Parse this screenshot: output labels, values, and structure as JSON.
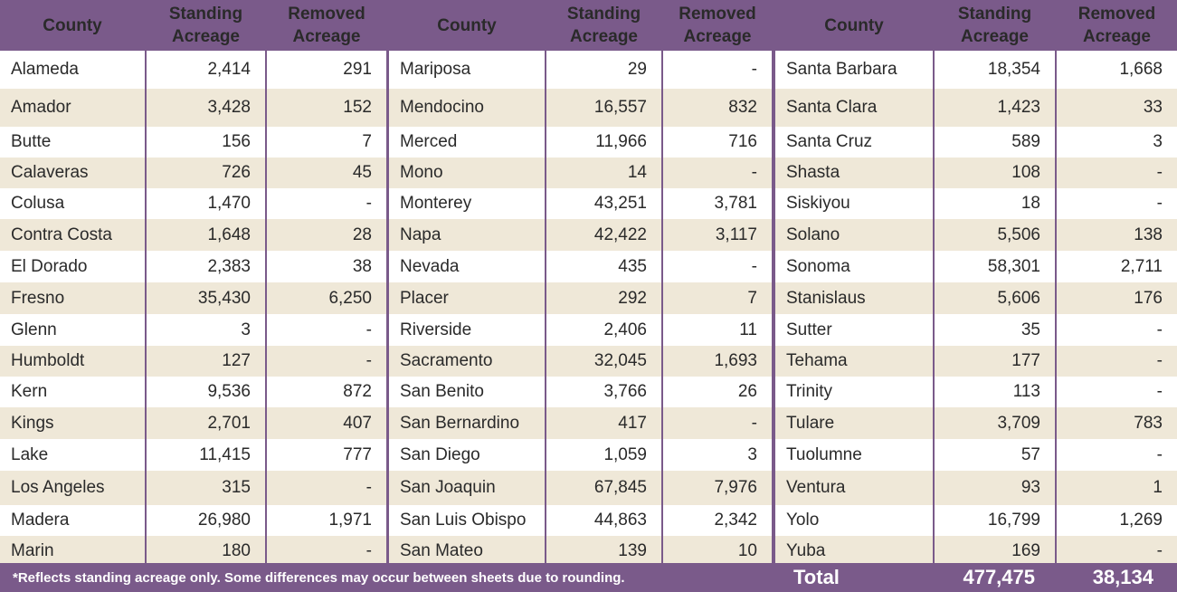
{
  "headers": {
    "county": "County",
    "standing": "Standing Acreage",
    "removed": "Removed Acreage"
  },
  "columns": [
    [
      {
        "county": "Alameda",
        "standing": "2,414",
        "removed": "291"
      },
      {
        "county": "Amador",
        "standing": "3,428",
        "removed": "152"
      },
      {
        "county": "Butte",
        "standing": "156",
        "removed": "7"
      },
      {
        "county": "Calaveras",
        "standing": "726",
        "removed": "45"
      },
      {
        "county": "Colusa",
        "standing": "1,470",
        "removed": "-"
      },
      {
        "county": "Contra Costa",
        "standing": "1,648",
        "removed": "28"
      },
      {
        "county": "El Dorado",
        "standing": "2,383",
        "removed": "38"
      },
      {
        "county": "Fresno",
        "standing": "35,430",
        "removed": "6,250"
      },
      {
        "county": "Glenn",
        "standing": "3",
        "removed": "-"
      },
      {
        "county": "Humboldt",
        "standing": "127",
        "removed": "-"
      },
      {
        "county": "Kern",
        "standing": "9,536",
        "removed": "872"
      },
      {
        "county": "Kings",
        "standing": "2,701",
        "removed": "407"
      },
      {
        "county": "Lake",
        "standing": "11,415",
        "removed": "777"
      },
      {
        "county": "Los Angeles",
        "standing": "315",
        "removed": "-"
      },
      {
        "county": "Madera",
        "standing": "26,980",
        "removed": "1,971"
      },
      {
        "county": "Marin",
        "standing": "180",
        "removed": "-"
      }
    ],
    [
      {
        "county": "Mariposa",
        "standing": "29",
        "removed": "-"
      },
      {
        "county": "Mendocino",
        "standing": "16,557",
        "removed": "832"
      },
      {
        "county": "Merced",
        "standing": "11,966",
        "removed": "716"
      },
      {
        "county": "Mono",
        "standing": "14",
        "removed": "-"
      },
      {
        "county": "Monterey",
        "standing": "43,251",
        "removed": "3,781"
      },
      {
        "county": "Napa",
        "standing": "42,422",
        "removed": "3,117"
      },
      {
        "county": "Nevada",
        "standing": "435",
        "removed": "-"
      },
      {
        "county": "Placer",
        "standing": "292",
        "removed": "7"
      },
      {
        "county": "Riverside",
        "standing": "2,406",
        "removed": "11"
      },
      {
        "county": "Sacramento",
        "standing": "32,045",
        "removed": "1,693"
      },
      {
        "county": "San Benito",
        "standing": "3,766",
        "removed": "26"
      },
      {
        "county": "San Bernardino",
        "standing": "417",
        "removed": "-"
      },
      {
        "county": "San Diego",
        "standing": "1,059",
        "removed": "3"
      },
      {
        "county": "San Joaquin",
        "standing": "67,845",
        "removed": "7,976"
      },
      {
        "county": "San Luis Obispo",
        "standing": "44,863",
        "removed": "2,342"
      },
      {
        "county": "San Mateo",
        "standing": "139",
        "removed": "10"
      }
    ],
    [
      {
        "county": "Santa Barbara",
        "standing": "18,354",
        "removed": "1,668"
      },
      {
        "county": "Santa Clara",
        "standing": "1,423",
        "removed": "33"
      },
      {
        "county": "Santa Cruz",
        "standing": "589",
        "removed": "3"
      },
      {
        "county": "Shasta",
        "standing": "108",
        "removed": "-"
      },
      {
        "county": "Siskiyou",
        "standing": "18",
        "removed": "-"
      },
      {
        "county": "Solano",
        "standing": "5,506",
        "removed": "138"
      },
      {
        "county": "Sonoma",
        "standing": "58,301",
        "removed": "2,711"
      },
      {
        "county": "Stanislaus",
        "standing": "5,606",
        "removed": "176"
      },
      {
        "county": "Sutter",
        "standing": "35",
        "removed": "-"
      },
      {
        "county": "Tehama",
        "standing": "177",
        "removed": "-"
      },
      {
        "county": "Trinity",
        "standing": "113",
        "removed": "-"
      },
      {
        "county": "Tulare",
        "standing": "3,709",
        "removed": "783"
      },
      {
        "county": "Tuolumne",
        "standing": "57",
        "removed": "-"
      },
      {
        "county": "Ventura",
        "standing": "93",
        "removed": "1"
      },
      {
        "county": "Yolo",
        "standing": "16,799",
        "removed": "1,269"
      },
      {
        "county": "Yuba",
        "standing": "169",
        "removed": "-"
      }
    ]
  ],
  "footnote": "*Reflects standing acreage only. Some differences may occur between sheets due to rounding.",
  "total": {
    "label": "Total",
    "standing": "477,475",
    "removed": "38,134"
  },
  "colors": {
    "header": "#7a5a8a",
    "stripe": "#efe8d8",
    "text": "#2a2a2a"
  }
}
